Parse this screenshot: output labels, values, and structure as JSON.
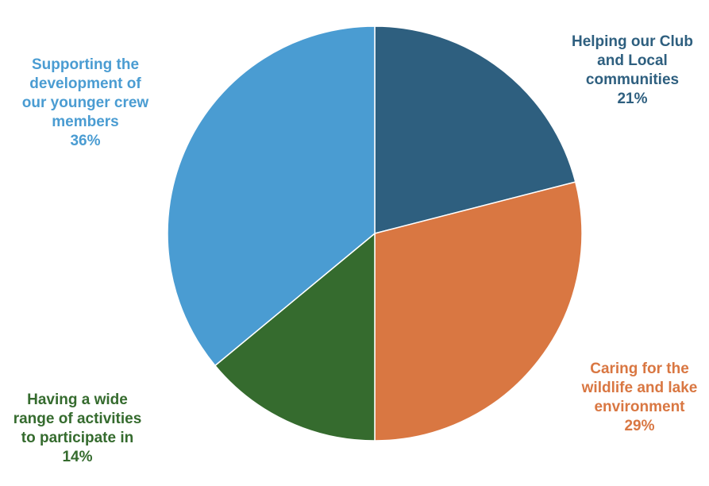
{
  "chart_data": {
    "type": "pie",
    "title": "",
    "slices": [
      {
        "label": "Helping our Club\nand Local\ncommunities",
        "value": 21,
        "value_label": "21%",
        "color": "#2e5f7f"
      },
      {
        "label": "Caring for the\nwildlife and lake\nenvironment",
        "value": 29,
        "value_label": "29%",
        "color": "#d97742"
      },
      {
        "label": "Having a wide\nrange of activities\nto participate in",
        "value": 14,
        "value_label": "14%",
        "color": "#356b2e"
      },
      {
        "label": "Supporting the\ndevelopment of\nour younger crew\nmembers",
        "value": 36,
        "value_label": "36%",
        "color": "#4a9cd2"
      }
    ],
    "start_angle": "12 o'clock",
    "direction": "clockwise",
    "legend": "none",
    "labels_placement": "outside"
  }
}
